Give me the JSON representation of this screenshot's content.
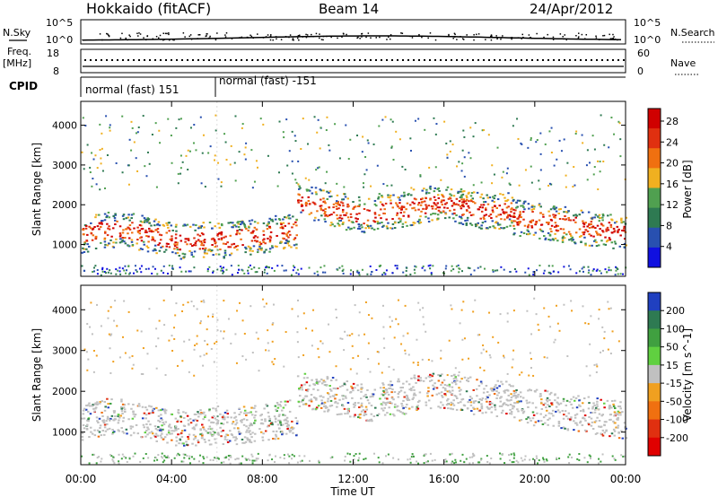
{
  "header": {
    "site": "Hokkaido (fitACF)",
    "beam": "Beam 14",
    "date": "24/Apr/2012"
  },
  "param_panels": {
    "noise": {
      "left_label": "N.Sky",
      "right_label": "N.Search",
      "left_ticks": [
        "10^5",
        "10^0"
      ],
      "right_ticks": [
        "10^5",
        "10^0"
      ]
    },
    "freq": {
      "left_label_line1": "Freq.",
      "left_label_line2": "[MHz]",
      "left_ticks": [
        "18",
        "8"
      ],
      "right_label": "Nave",
      "right_ticks": [
        "60",
        "0"
      ]
    },
    "cpid": {
      "label": "CPID",
      "segments": [
        "normal (fast) 151",
        "normal (fast) -151"
      ]
    }
  },
  "chart_data": [
    {
      "type": "heatmap",
      "title": "",
      "xlabel": "Time UT",
      "ylabel": "Slant Range [km]",
      "x_ticks": [
        "00:00",
        "04:00",
        "08:00",
        "12:00",
        "16:00",
        "20:00",
        "00:00"
      ],
      "x_range_hours": [
        0,
        24
      ],
      "y_ticks": [
        1000,
        2000,
        3000,
        4000
      ],
      "ylim": [
        200,
        4600
      ],
      "colorbar": {
        "label": "Power [dB]",
        "ticks": [
          "4",
          "8",
          "12",
          "16",
          "20",
          "24",
          "28"
        ],
        "range": [
          0,
          30
        ],
        "colors": [
          "#1010e0",
          "#2850b0",
          "#2e7a52",
          "#50a050",
          "#f0b020",
          "#f07010",
          "#e03010",
          "#d00000"
        ]
      }
    },
    {
      "type": "heatmap",
      "title": "",
      "xlabel": "Time UT",
      "ylabel": "Slant Range [km]",
      "x_ticks": [
        "00:00",
        "04:00",
        "08:00",
        "12:00",
        "16:00",
        "20:00",
        "00:00"
      ],
      "x_range_hours": [
        0,
        24
      ],
      "y_ticks": [
        1000,
        2000,
        3000,
        4000
      ],
      "ylim": [
        200,
        4600
      ],
      "colorbar": {
        "label": "Velocity [m s^-1]",
        "ticks": [
          "200",
          "100",
          "50",
          "15",
          "-15",
          "-50",
          "-100",
          "-200"
        ],
        "range": [
          -250,
          250
        ],
        "colors": [
          "#2040c0",
          "#2e7a52",
          "#40a040",
          "#60d040",
          "#c0c0c0",
          "#f0a020",
          "#f07010",
          "#e03010",
          "#e00000"
        ]
      }
    }
  ]
}
